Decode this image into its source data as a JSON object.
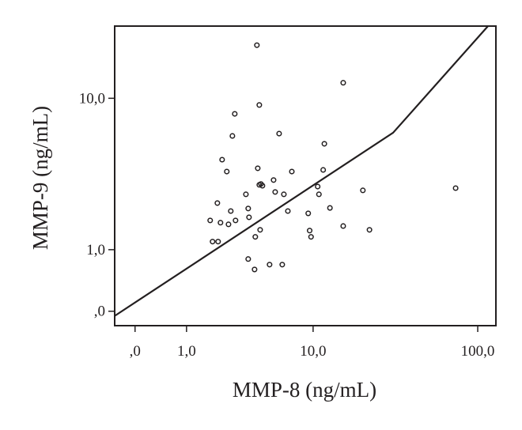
{
  "chart_data": {
    "type": "scatter",
    "x_label": "MMP-8 (ng/mL)",
    "y_label": "MMP-9 (ng/mL)",
    "xscale": "log1p",
    "yscale": "log1p",
    "xlim": [
      -0.24,
      128
    ],
    "ylim": [
      -0.15,
      23.8
    ],
    "xticks": [
      {
        "value": 0,
        "label": ",0"
      },
      {
        "value": 1,
        "label": "1,0"
      },
      {
        "value": 10,
        "label": "10,0"
      },
      {
        "value": 100,
        "label": "100,0"
      }
    ],
    "yticks": [
      {
        "value": 0,
        "label": ",0"
      },
      {
        "value": 1,
        "label": "1,0"
      },
      {
        "value": 10,
        "label": "10,0"
      }
    ],
    "color": "#231f20",
    "x": [
      4.16,
      15.5,
      2.83,
      4.33,
      2.71,
      5.96,
      11.8,
      2.23,
      2.44,
      4.22,
      7.26,
      11.6,
      5.46,
      4.33,
      4.56,
      4.45,
      3.45,
      5.6,
      6.42,
      10.7,
      10.9,
      20.5,
      74,
      2.03,
      2.63,
      3.59,
      6.83,
      12.8,
      9.3,
      3.64,
      1.75,
      2.87,
      2.16,
      2.52,
      4.39,
      15.5,
      22.5,
      9.5,
      9.7,
      4.05,
      1.84,
      2.06,
      3.59,
      5.12,
      6.26,
      4.0
    ],
    "values": [
      19.0,
      12.1,
      8.23,
      9.2,
      6.2,
      6.39,
      5.59,
      4.51,
      3.82,
      4.0,
      3.82,
      3.91,
      3.38,
      3.15,
      3.11,
      3.19,
      2.73,
      2.83,
      2.73,
      3.07,
      2.73,
      2.9,
      3.0,
      2.38,
      2.09,
      2.18,
      2.09,
      2.2,
      2.01,
      1.88,
      1.78,
      1.78,
      1.71,
      1.66,
      1.5,
      1.61,
      1.5,
      1.48,
      1.31,
      1.31,
      1.19,
      1.19,
      0.8,
      0.69,
      0.69,
      0.6
    ],
    "reference_line": {
      "x": [
        -0.241,
        31.3,
        115
      ],
      "values": [
        -0.052,
        6.46,
        23.8
      ]
    }
  }
}
